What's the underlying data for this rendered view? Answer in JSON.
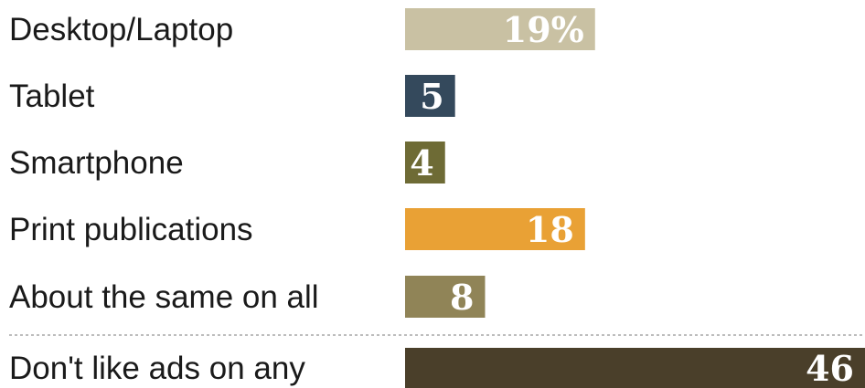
{
  "chart_data": {
    "type": "bar",
    "orientation": "horizontal",
    "categories": [
      "Desktop/Laptop",
      "Tablet",
      "Smartphone",
      "Print publications",
      "About the same on all",
      "Don't like ads on any"
    ],
    "values": [
      19,
      5,
      4,
      18,
      8,
      46
    ],
    "value_labels": [
      "19%",
      "5",
      "4",
      "18",
      "8",
      "46"
    ],
    "colors": [
      "#c9c1a3",
      "#34495c",
      "#6e6b35",
      "#e9a135",
      "#908457",
      "#4a3f2a"
    ],
    "separator_before_last": true,
    "xlim": [
      0,
      46
    ],
    "title": "",
    "xlabel": "",
    "ylabel": ""
  }
}
